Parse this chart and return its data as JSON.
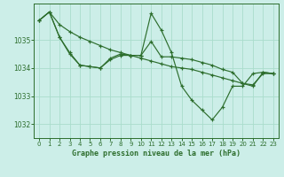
{
  "background_color": "#cceee8",
  "grid_color": "#aaddcc",
  "line_color": "#2d6e2d",
  "marker_color": "#2d6e2d",
  "title": "Graphe pression niveau de la mer (hPa)",
  "title_color": "#2d6e2d",
  "xlim": [
    -0.5,
    23.5
  ],
  "ylim": [
    1031.5,
    1036.3
  ],
  "yticks": [
    1032,
    1033,
    1034,
    1035
  ],
  "xticks": [
    0,
    1,
    2,
    3,
    4,
    5,
    6,
    7,
    8,
    9,
    10,
    11,
    12,
    13,
    14,
    15,
    16,
    17,
    18,
    19,
    20,
    21,
    22,
    23
  ],
  "series": [
    {
      "x": [
        0,
        1,
        2,
        3,
        4,
        5,
        6,
        7,
        8,
        9,
        10,
        11,
        12,
        13,
        14,
        15,
        16,
        17,
        18,
        19,
        20,
        21,
        22,
        23
      ],
      "y": [
        1035.7,
        1036.0,
        1035.1,
        1034.5,
        1034.1,
        1034.05,
        1034.0,
        1034.35,
        1034.5,
        1034.45,
        1034.45,
        1035.95,
        1035.35,
        1034.55,
        1033.35,
        1032.85,
        1032.5,
        1032.15,
        1032.6,
        1033.35,
        1033.35,
        1033.8,
        1033.85,
        1033.8
      ]
    },
    {
      "x": [
        0,
        1,
        2,
        3,
        4,
        5,
        6,
        7,
        8,
        9,
        10,
        11,
        12,
        13,
        14,
        15,
        16,
        17,
        18,
        19,
        20,
        21,
        22,
        23
      ],
      "y": [
        1035.7,
        1036.0,
        1035.55,
        1035.3,
        1035.1,
        1034.95,
        1034.8,
        1034.65,
        1034.55,
        1034.45,
        1034.35,
        1034.25,
        1034.15,
        1034.05,
        1034.0,
        1033.95,
        1033.85,
        1033.75,
        1033.65,
        1033.55,
        1033.45,
        1033.4,
        1033.8,
        1033.8
      ]
    },
    {
      "x": [
        0,
        1,
        2,
        3,
        4,
        5,
        6,
        7,
        8,
        9,
        10,
        11,
        12,
        13,
        14,
        15,
        16,
        17,
        18,
        19,
        20,
        21,
        22,
        23
      ],
      "y": [
        1035.7,
        1036.0,
        1035.1,
        1034.55,
        1034.1,
        1034.05,
        1034.0,
        1034.3,
        1034.45,
        1034.45,
        1034.45,
        1034.95,
        1034.4,
        1034.4,
        1034.35,
        1034.3,
        1034.2,
        1034.1,
        1033.95,
        1033.85,
        1033.45,
        1033.35,
        1033.85,
        1033.8
      ]
    }
  ]
}
